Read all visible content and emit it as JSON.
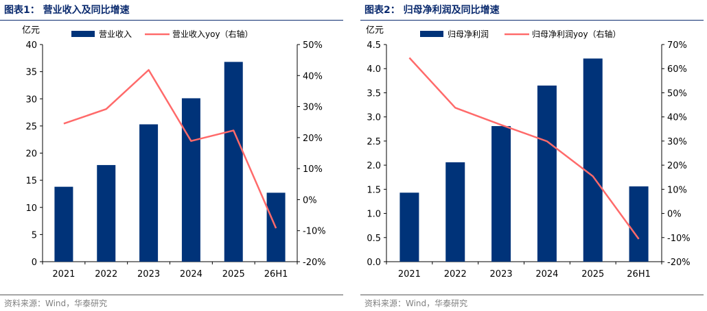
{
  "charts": [
    {
      "title": "图表1：  营业收入及同比增速",
      "source": "资料来源：Wind，华泰研究",
      "chart_data": {
        "type": "bar",
        "categories": [
          "2021",
          "2022",
          "2023",
          "2024",
          "2025",
          "26H1"
        ],
        "series": [
          {
            "name": "营业收入",
            "type": "bar",
            "axis": "left",
            "values": [
              13.8,
              17.8,
              25.3,
              30.1,
              36.8,
              12.7
            ]
          },
          {
            "name": "营业收入yoy（右轴）",
            "type": "line",
            "axis": "right",
            "values": [
              24.5,
              29.2,
              41.8,
              18.9,
              22.3,
              -9.2
            ]
          }
        ],
        "ylabel": "亿元",
        "ylim": [
          0,
          40
        ],
        "yticks": [
          "0",
          "5",
          "10",
          "15",
          "20",
          "25",
          "30",
          "35",
          "40"
        ],
        "y2lim": [
          -20,
          50
        ],
        "y2ticks": [
          "-20%",
          "-10%",
          "0%",
          "10%",
          "20%",
          "30%",
          "40%",
          "50%"
        ],
        "legend": "top-center",
        "grid": false,
        "colors": {
          "bar": "#003379",
          "line": "#ff6a6a"
        }
      }
    },
    {
      "title": "图表2：  归母净利润及同比增速",
      "source": "资料来源：Wind，华泰研究",
      "chart_data": {
        "type": "bar",
        "categories": [
          "2021",
          "2022",
          "2023",
          "2024",
          "2025",
          "26H1"
        ],
        "series": [
          {
            "name": "归母净利润",
            "type": "bar",
            "axis": "left",
            "values": [
              1.43,
              2.06,
              2.81,
              3.65,
              4.21,
              1.56
            ]
          },
          {
            "name": "归母净利润yoy（右轴）",
            "type": "line",
            "axis": "right",
            "values": [
              64.5,
              43.8,
              36.7,
              29.9,
              15.4,
              -10.6
            ]
          }
        ],
        "ylabel": "亿元",
        "ylim": [
          0,
          4.5
        ],
        "yticks": [
          "0.0",
          "0.5",
          "1.0",
          "1.5",
          "2.0",
          "2.5",
          "3.0",
          "3.5",
          "4.0",
          "4.5"
        ],
        "y2lim": [
          -20,
          70
        ],
        "y2ticks": [
          "-20%",
          "-10%",
          "0%",
          "10%",
          "20%",
          "30%",
          "40%",
          "50%",
          "60%",
          "70%"
        ],
        "legend": "top-center",
        "grid": false,
        "colors": {
          "bar": "#003379",
          "line": "#ff6a6a"
        }
      }
    }
  ]
}
